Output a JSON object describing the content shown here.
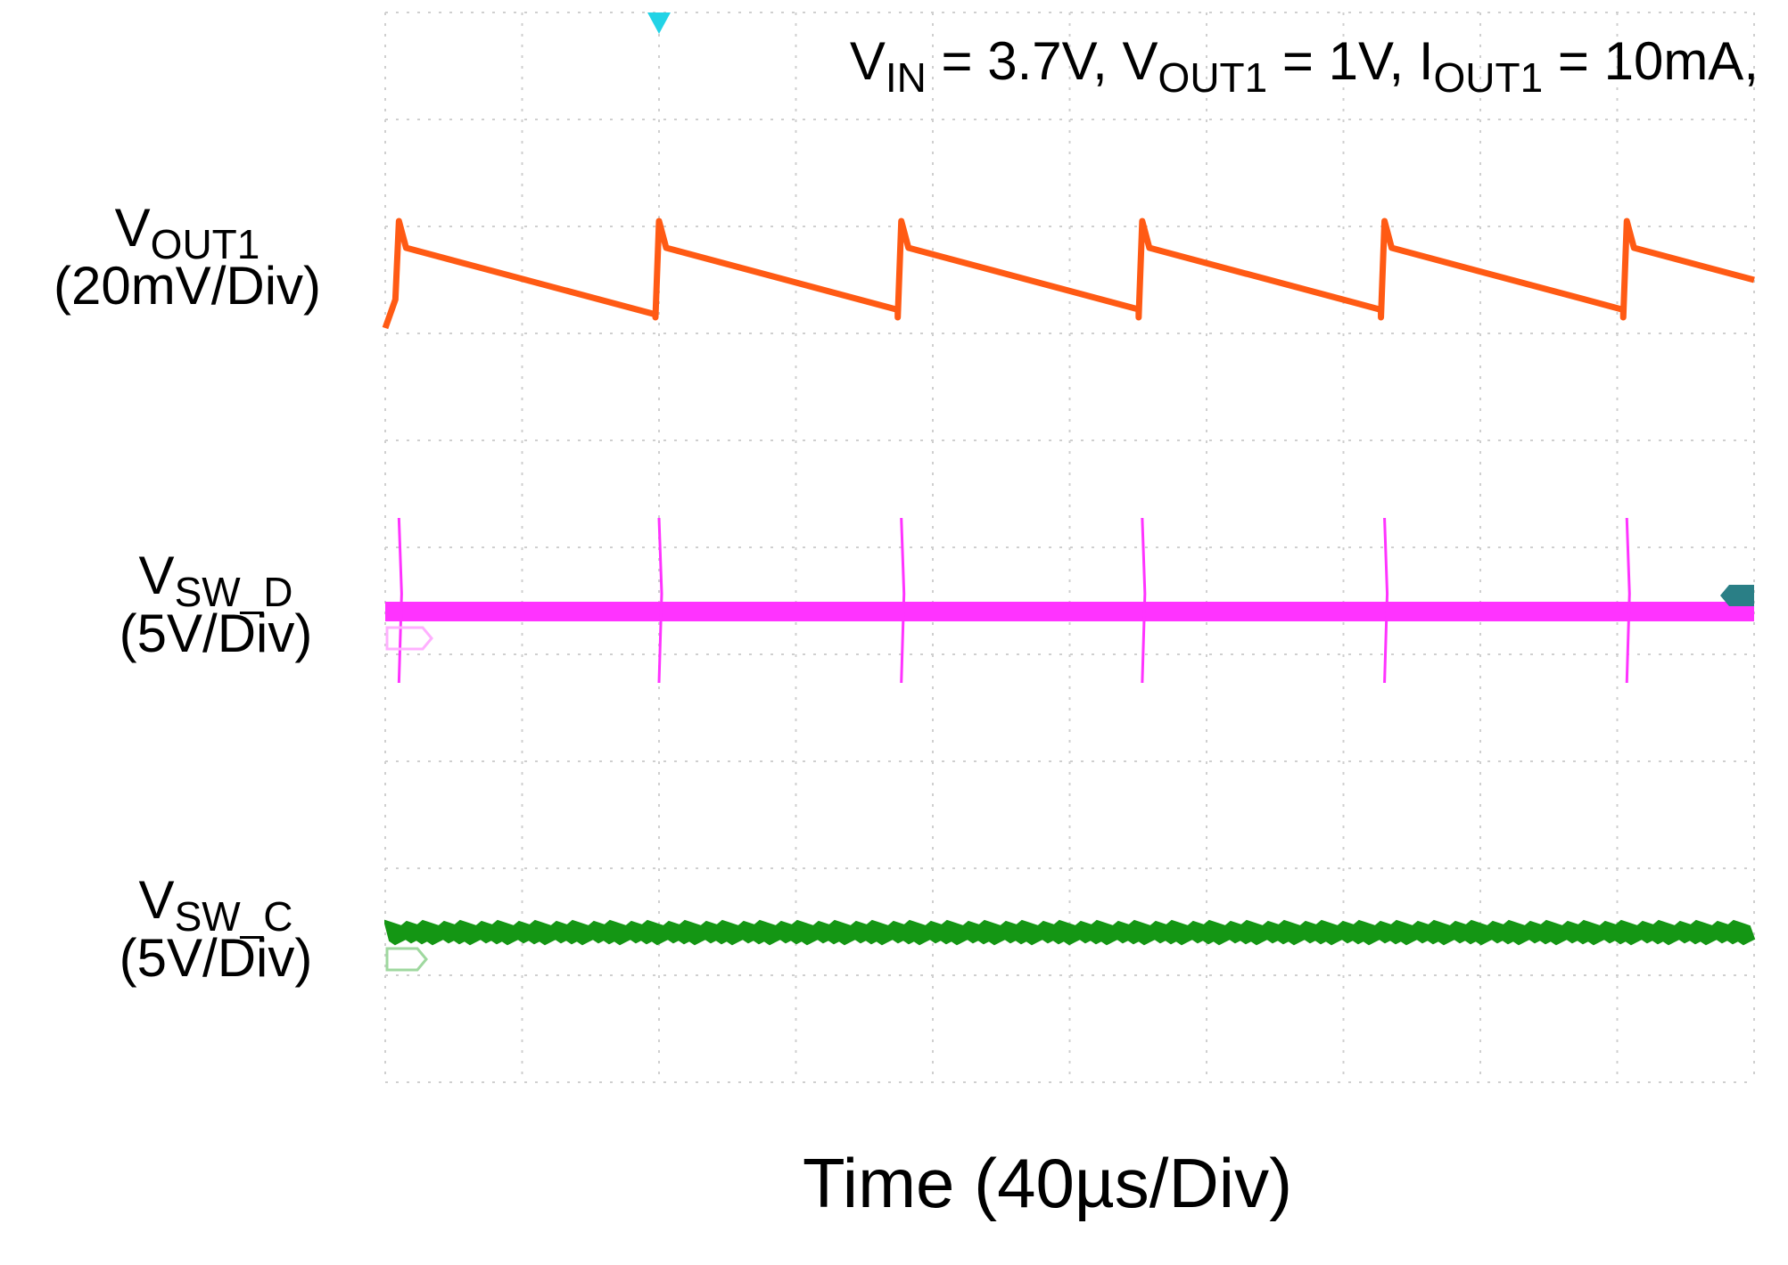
{
  "chart_data": {
    "type": "line",
    "title": {
      "parts": [
        {
          "text": "V"
        },
        {
          "sub": "IN"
        },
        {
          "text": " = 3.7V, V"
        },
        {
          "sub": "OUT1"
        },
        {
          "text": " = 1V, I"
        },
        {
          "sub": "OUT1"
        },
        {
          "text": " = 10mA,"
        }
      ]
    },
    "xlabel": "Time (40µs/Div)",
    "x_divisions": 10,
    "y_divisions": 10,
    "grid": true,
    "trigger_marker_division": 2,
    "channels": [
      {
        "id": "vout1",
        "label_main": "V",
        "label_sub": "OUT1",
        "scale": "(20mV/Div)",
        "color": "#ff5a14",
        "waveform": "sawtooth",
        "baseline_division": 2.85,
        "peak_division": 2.0,
        "pulse_divisions": [
          0.1,
          2.0,
          3.77,
          5.53,
          7.3,
          9.07
        ]
      },
      {
        "id": "vsw_d",
        "label_main": "V",
        "label_sub": "SW_D",
        "scale": "(5V/Div)",
        "color": "#ff33ff",
        "waveform": "switching-spikes",
        "level_division": 5.6,
        "ground_marker": "C2",
        "right_marker": "T1",
        "spike_divisions": [
          0.1,
          2.0,
          3.77,
          5.53,
          7.3,
          9.07
        ]
      },
      {
        "id": "vsw_c",
        "label_main": "V",
        "label_sub": "SW_C",
        "scale": "(5V/Div)",
        "color": "#149614",
        "waveform": "flat-noise",
        "level_division": 8.6,
        "ground_marker": "C3"
      }
    ]
  }
}
